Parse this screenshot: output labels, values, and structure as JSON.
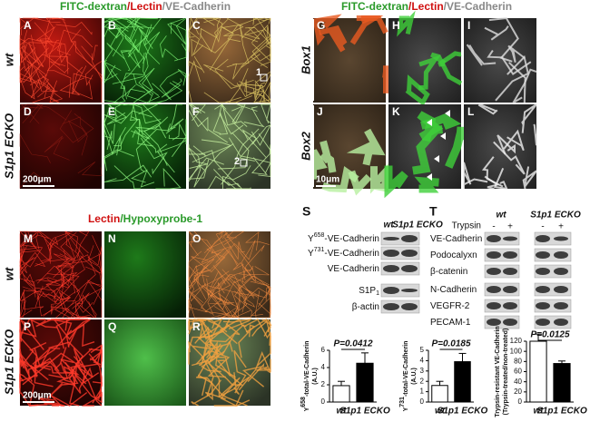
{
  "figure": {
    "top_left": {
      "title": [
        "FITC-dextran",
        "/",
        "Lectin",
        "/",
        "VE-Cadherin"
      ],
      "row_labels": [
        "wt",
        "S1p1 ECKO"
      ],
      "panels": [
        "A",
        "B",
        "C",
        "D",
        "E",
        "F"
      ],
      "annotations": [
        "1",
        "2"
      ],
      "scale_bar": "200μm"
    },
    "top_right": {
      "title": [
        "FITC-dextran",
        "/",
        "Lectin",
        "/",
        "VE-Cadherin"
      ],
      "row_labels": [
        "Box1",
        "Box2"
      ],
      "panels": [
        "G",
        "H",
        "I",
        "J",
        "K",
        "L"
      ],
      "scale_bar": "10μm"
    },
    "bottom_left": {
      "title": [
        "Lectin",
        "/",
        "Hypoxyprobe-1"
      ],
      "row_labels": [
        "wt",
        "S1p1 ECKO"
      ],
      "panels": [
        "M",
        "N",
        "O",
        "P",
        "Q",
        "R"
      ],
      "scale_bar": "200μm"
    },
    "blot_s": {
      "label": "S",
      "columns": [
        "wt",
        "S1p1 ECKO"
      ],
      "rows": [
        {
          "text": "Y",
          "sup": "658",
          "after": "-VE-Cadherin"
        },
        {
          "text": "Y",
          "sup": "731",
          "after": "-VE-Cadherin"
        },
        {
          "text": "VE-Cadherin"
        },
        {
          "text": "S1P",
          "sub": "1"
        },
        {
          "text": "β-actin"
        }
      ]
    },
    "blot_t": {
      "label": "T",
      "conditions": [
        "wt",
        "S1p1 ECKO"
      ],
      "treatment": "Trypsin",
      "treatment_marks": [
        "-",
        "+",
        "-",
        "+"
      ],
      "rows": [
        {
          "text": "VE-Cadherin"
        },
        {
          "text": "Podocalyxn"
        },
        {
          "text": "β-catenin"
        },
        {
          "text": "N-Cadherin"
        },
        {
          "text": "VEGFR-2"
        },
        {
          "text": "PECAM-1"
        }
      ]
    }
  },
  "chart_data": [
    {
      "type": "bar",
      "ylabel": {
        "text": "Y",
        "sup": "658",
        "after": "-total-VE-Cadherin"
      },
      "ylabel_units": "(A.U.)",
      "annotation": "P=0.0412",
      "categories": [
        "wt",
        "S1p1 ECKO"
      ],
      "values": [
        1.9,
        4.5
      ],
      "errors": [
        0.5,
        1.2
      ],
      "colors": [
        "#ffffff",
        "#000000"
      ],
      "ylim": [
        0,
        6
      ],
      "yticks": [
        0,
        2,
        4,
        6
      ]
    },
    {
      "type": "bar",
      "ylabel": {
        "text": "Y",
        "sup": "731",
        "after": "-total-VE-Cadherin"
      },
      "ylabel_units": "(A.U.)",
      "annotation": "P=0.0185",
      "categories": [
        "wt",
        "S1p1 ECKO"
      ],
      "values": [
        1.6,
        3.9
      ],
      "errors": [
        0.4,
        0.8
      ],
      "colors": [
        "#ffffff",
        "#000000"
      ],
      "ylim": [
        0,
        5
      ],
      "yticks": [
        0,
        1,
        2,
        3,
        4,
        5
      ]
    },
    {
      "type": "bar",
      "ylabel": {
        "text": "Trypsin-resistant VE-Cadherin"
      },
      "ylabel_units": "(Trypsin-treated/non-treated)",
      "annotation": "P=0.0125",
      "categories": [
        "wt",
        "S1p1 ECKO"
      ],
      "values": [
        120,
        76
      ],
      "errors": [
        14,
        5
      ],
      "colors": [
        "#ffffff",
        "#000000"
      ],
      "ylim": [
        0,
        120
      ],
      "yticks": [
        0,
        20,
        40,
        60,
        80,
        100,
        120
      ]
    }
  ]
}
